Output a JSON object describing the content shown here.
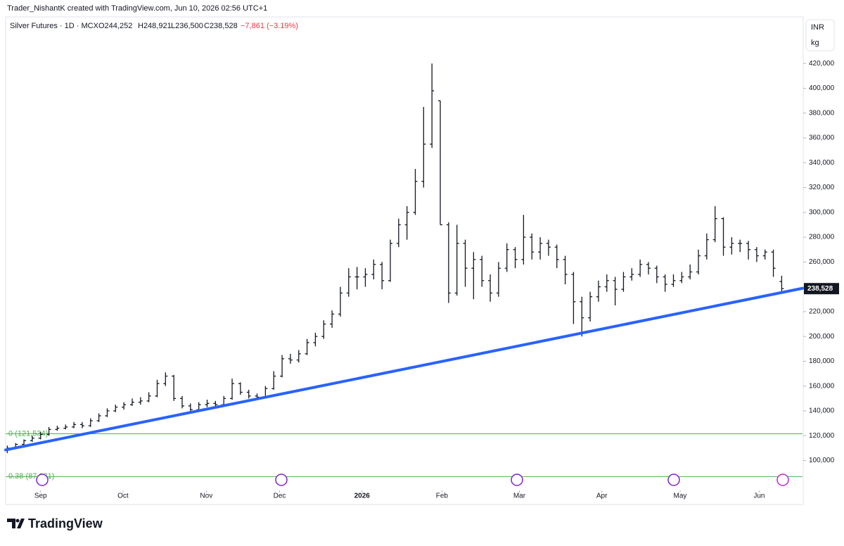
{
  "watermark": "Trader_NishantK created with TradingView.com, Jun 10, 2026 02:56 UTC+1",
  "logo": "TradingView",
  "currency": "INR",
  "unit": "kg",
  "chart_data": {
    "type": "ohlc",
    "legend": {
      "name": "Silver Futures · 1D · MCX",
      "open": "O244,252",
      "high": "H248,921",
      "low": "L236,500",
      "close": "C238,528",
      "change": "−7,861 (−3.19%)"
    },
    "last_price_label": "238,528",
    "color": "#131722",
    "ylim": [
      77000,
      461000
    ],
    "xlim": [
      -0.2,
      95.5
    ],
    "yticks": [
      {
        "value": 100000,
        "label": "100,000"
      },
      {
        "value": 120000,
        "label": "120,000"
      },
      {
        "value": 140000,
        "label": "140,000"
      },
      {
        "value": 160000,
        "label": "160,000"
      },
      {
        "value": 180000,
        "label": "180,000"
      },
      {
        "value": 200000,
        "label": "200,000"
      },
      {
        "value": 220000,
        "label": "220,000"
      },
      {
        "value": 240000,
        "label": "240,000"
      },
      {
        "value": 260000,
        "label": "260,000"
      },
      {
        "value": 280000,
        "label": "280,000"
      },
      {
        "value": 300000,
        "label": "300,000"
      },
      {
        "value": 320000,
        "label": "320,000"
      },
      {
        "value": 340000,
        "label": "340,000"
      },
      {
        "value": 360000,
        "label": "360,000"
      },
      {
        "value": 380000,
        "label": "380,000"
      },
      {
        "value": 400000,
        "label": "400,000"
      },
      {
        "value": 420000,
        "label": "420,000"
      }
    ],
    "xticks": [
      {
        "value": 4.0,
        "label": "Sep"
      },
      {
        "value": 13.9,
        "label": "Oct"
      },
      {
        "value": 23.9,
        "label": "Nov"
      },
      {
        "value": 32.7,
        "label": "Dec"
      },
      {
        "value": 42.6,
        "label": "2026"
      },
      {
        "value": 52.2,
        "label": "Feb"
      },
      {
        "value": 61.5,
        "label": "Mar"
      },
      {
        "value": 71.4,
        "label": "Apr"
      },
      {
        "value": 80.8,
        "label": "May"
      },
      {
        "value": 90.3,
        "label": "Jun"
      }
    ],
    "trendline": {
      "color": "#2962ff",
      "x": [
        -0.2,
        95.5
      ],
      "y": [
        108500,
        238800
      ]
    },
    "fib_levels": [
      {
        "value": 121534,
        "label": "0 (121,534)"
      },
      {
        "value": 87031,
        "label": "0.38 (87,031)"
      }
    ],
    "fib_color": "#4caf50",
    "ohlc": [
      [
        108000,
        112000,
        106000,
        110000
      ],
      [
        110000,
        114000,
        109000,
        113000
      ],
      [
        113000,
        117000,
        112000,
        116000
      ],
      [
        116000,
        120000,
        115000,
        118000
      ],
      [
        118000,
        123000,
        117000,
        121000
      ],
      [
        121000,
        127000,
        120000,
        125000
      ],
      [
        125000,
        128000,
        124000,
        126000
      ],
      [
        126000,
        129000,
        125000,
        127000
      ],
      [
        127000,
        131000,
        126000,
        129000
      ],
      [
        129000,
        131000,
        126000,
        128000
      ],
      [
        128000,
        134000,
        127000,
        132000
      ],
      [
        132000,
        138000,
        131000,
        136000
      ],
      [
        136000,
        142000,
        135000,
        140000
      ],
      [
        140000,
        145000,
        139000,
        143000
      ],
      [
        143000,
        147000,
        141000,
        145000
      ],
      [
        145000,
        150000,
        144000,
        147000
      ],
      [
        147000,
        151000,
        145000,
        148000
      ],
      [
        148000,
        155000,
        147000,
        152000
      ],
      [
        152000,
        165000,
        151000,
        162000
      ],
      [
        162000,
        171000,
        160000,
        168000
      ],
      [
        168000,
        169000,
        148000,
        150000
      ],
      [
        150000,
        152000,
        142000,
        144000
      ],
      [
        144000,
        146000,
        138000,
        141000
      ],
      [
        141000,
        147000,
        140000,
        145000
      ],
      [
        145000,
        149000,
        143000,
        146000
      ],
      [
        146000,
        148000,
        143000,
        145000
      ],
      [
        145000,
        152000,
        144000,
        150000
      ],
      [
        150000,
        166000,
        149000,
        162000
      ],
      [
        162000,
        163000,
        153000,
        155000
      ],
      [
        155000,
        157000,
        150000,
        152000
      ],
      [
        152000,
        154000,
        149000,
        151000
      ],
      [
        151000,
        160000,
        150000,
        158000
      ],
      [
        158000,
        172000,
        157000,
        168000
      ],
      [
        168000,
        185000,
        167000,
        182000
      ],
      [
        182000,
        186000,
        178000,
        181000
      ],
      [
        181000,
        189000,
        179000,
        186000
      ],
      [
        186000,
        198000,
        185000,
        195000
      ],
      [
        195000,
        203000,
        192000,
        200000
      ],
      [
        200000,
        213000,
        198000,
        210000
      ],
      [
        210000,
        221000,
        207000,
        218000
      ],
      [
        218000,
        240000,
        216000,
        235000
      ],
      [
        235000,
        255000,
        232000,
        248000
      ],
      [
        248000,
        256000,
        238000,
        248000
      ],
      [
        248000,
        255000,
        240000,
        250000
      ],
      [
        250000,
        262000,
        246000,
        258000
      ],
      [
        258000,
        260000,
        238000,
        245000
      ],
      [
        245000,
        278000,
        244000,
        275000
      ],
      [
        275000,
        295000,
        272000,
        290000
      ],
      [
        290000,
        305000,
        278000,
        300000
      ],
      [
        300000,
        335000,
        298000,
        325000
      ],
      [
        325000,
        385000,
        320000,
        355000
      ],
      [
        355000,
        420000,
        352000,
        398000
      ],
      [
        390000,
        390000,
        290000,
        290000
      ],
      [
        290000,
        292000,
        227000,
        235000
      ],
      [
        235000,
        290000,
        233000,
        275000
      ],
      [
        275000,
        278000,
        240000,
        255000
      ],
      [
        255000,
        268000,
        230000,
        262000
      ],
      [
        262000,
        265000,
        240000,
        245000
      ],
      [
        245000,
        250000,
        228000,
        235000
      ],
      [
        235000,
        260000,
        232000,
        255000
      ],
      [
        255000,
        275000,
        252000,
        270000
      ],
      [
        270000,
        272000,
        255000,
        262000
      ],
      [
        262000,
        298000,
        258000,
        280000
      ],
      [
        280000,
        283000,
        262000,
        268000
      ],
      [
        268000,
        280000,
        262000,
        275000
      ],
      [
        275000,
        278000,
        265000,
        272000
      ],
      [
        272000,
        274000,
        255000,
        262000
      ],
      [
        262000,
        265000,
        242000,
        250000
      ],
      [
        250000,
        252000,
        210000,
        228000
      ],
      [
        228000,
        232000,
        200000,
        215000
      ],
      [
        215000,
        236000,
        212000,
        232000
      ],
      [
        232000,
        245000,
        228000,
        240000
      ],
      [
        240000,
        250000,
        236000,
        245000
      ],
      [
        245000,
        248000,
        225000,
        238000
      ],
      [
        238000,
        252000,
        236000,
        248000
      ],
      [
        248000,
        255000,
        245000,
        250000
      ],
      [
        250000,
        262000,
        248000,
        258000
      ],
      [
        258000,
        260000,
        250000,
        255000
      ],
      [
        255000,
        257000,
        243000,
        248000
      ],
      [
        248000,
        250000,
        236000,
        242000
      ],
      [
        242000,
        250000,
        240000,
        245000
      ],
      [
        245000,
        252000,
        243000,
        248000
      ],
      [
        248000,
        258000,
        246000,
        252000
      ],
      [
        252000,
        270000,
        250000,
        265000
      ],
      [
        265000,
        283000,
        262000,
        278000
      ],
      [
        278000,
        305000,
        276000,
        295000
      ],
      [
        295000,
        296000,
        265000,
        272000
      ],
      [
        272000,
        280000,
        266000,
        275000
      ],
      [
        275000,
        278000,
        268000,
        275000
      ],
      [
        275000,
        277000,
        262000,
        270000
      ],
      [
        270000,
        272000,
        260000,
        265000
      ],
      [
        265000,
        270000,
        262000,
        268000
      ],
      [
        268000,
        270000,
        248000,
        255000
      ],
      [
        244252,
        248921,
        236500,
        238528
      ]
    ]
  }
}
